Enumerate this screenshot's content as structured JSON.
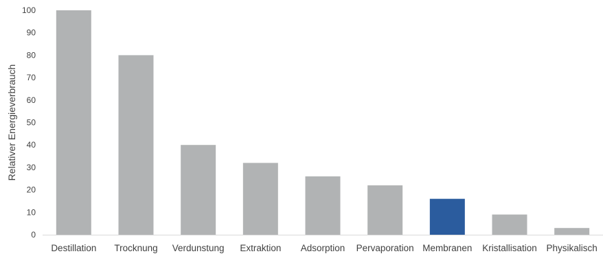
{
  "chart_data": {
    "type": "bar",
    "title": "",
    "xlabel": "",
    "ylabel": "Relativer Energieverbrauch",
    "categories": [
      "Destillation",
      "Trocknung",
      "Verdunstung",
      "Extraktion",
      "Adsorption",
      "Pervaporation",
      "Membranen",
      "Kristallisation",
      "Physikalisch"
    ],
    "values": [
      100,
      80,
      40,
      32,
      26,
      22,
      16,
      9,
      3
    ],
    "ylim": [
      0,
      100
    ],
    "yticks": [
      0,
      10,
      20,
      30,
      40,
      50,
      60,
      70,
      80,
      90,
      100
    ],
    "grid": false,
    "legend": "none",
    "colors": {
      "default_bar": "#b1b3b4",
      "highlight_bar": "#2b5c9e",
      "axis": "#d9d9d9",
      "text": "#404040"
    },
    "highlight_category": "Membranen"
  }
}
